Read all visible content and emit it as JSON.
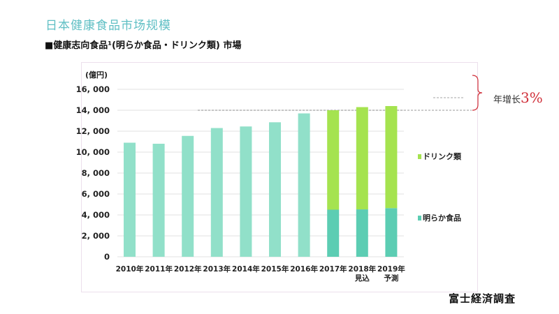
{
  "page": {
    "title": "日本健康食品市场规模",
    "subtitle": "■健康志向食品¹(明らか食品・ドリンク類) 市場",
    "source": "富士経済調査",
    "annotation_prefix": "年增长",
    "annotation_value": "3%"
  },
  "colors": {
    "single": "#91e0c9",
    "foods": "#5ccdb3",
    "drinks": "#a5e34f",
    "grid": "#e6e6e6",
    "bracket": "#d0303a"
  },
  "chart_data": {
    "type": "bar",
    "stacked": true,
    "title": "健康志向食品(明らか食品・ドリンク類) 市場",
    "ylabel": "(億円)",
    "xlabel": "",
    "ylim": [
      0,
      16000
    ],
    "yticks": [
      0,
      2000,
      4000,
      6000,
      8000,
      10000,
      12000,
      14000,
      16000
    ],
    "ytick_labels": [
      "0",
      "2, 000",
      "4, 000",
      "6, 000",
      "8, 000",
      "10, 000",
      "12, 000",
      "14, 000",
      "16, 000"
    ],
    "grid": true,
    "legend_position": "right",
    "categories": [
      "2010年",
      "2011年",
      "2012年",
      "2013年",
      "2014年",
      "2015年",
      "2016年",
      "2017年",
      "2018年\n見込",
      "2019年\n予測"
    ],
    "totals": [
      10900,
      10800,
      11550,
      12300,
      12450,
      12850,
      13700,
      14000,
      14300,
      14400
    ],
    "series": [
      {
        "name": "明らか食品",
        "values": [
          null,
          null,
          null,
          null,
          null,
          null,
          null,
          4500,
          4530,
          4650
        ]
      },
      {
        "name": "ドリンク類",
        "values": [
          null,
          null,
          null,
          null,
          null,
          null,
          null,
          9500,
          9770,
          9750
        ]
      }
    ],
    "legend": [
      "ドリンク類",
      "明らか食品"
    ],
    "reference_line_value": 14000,
    "annotation": "年增长3%"
  }
}
